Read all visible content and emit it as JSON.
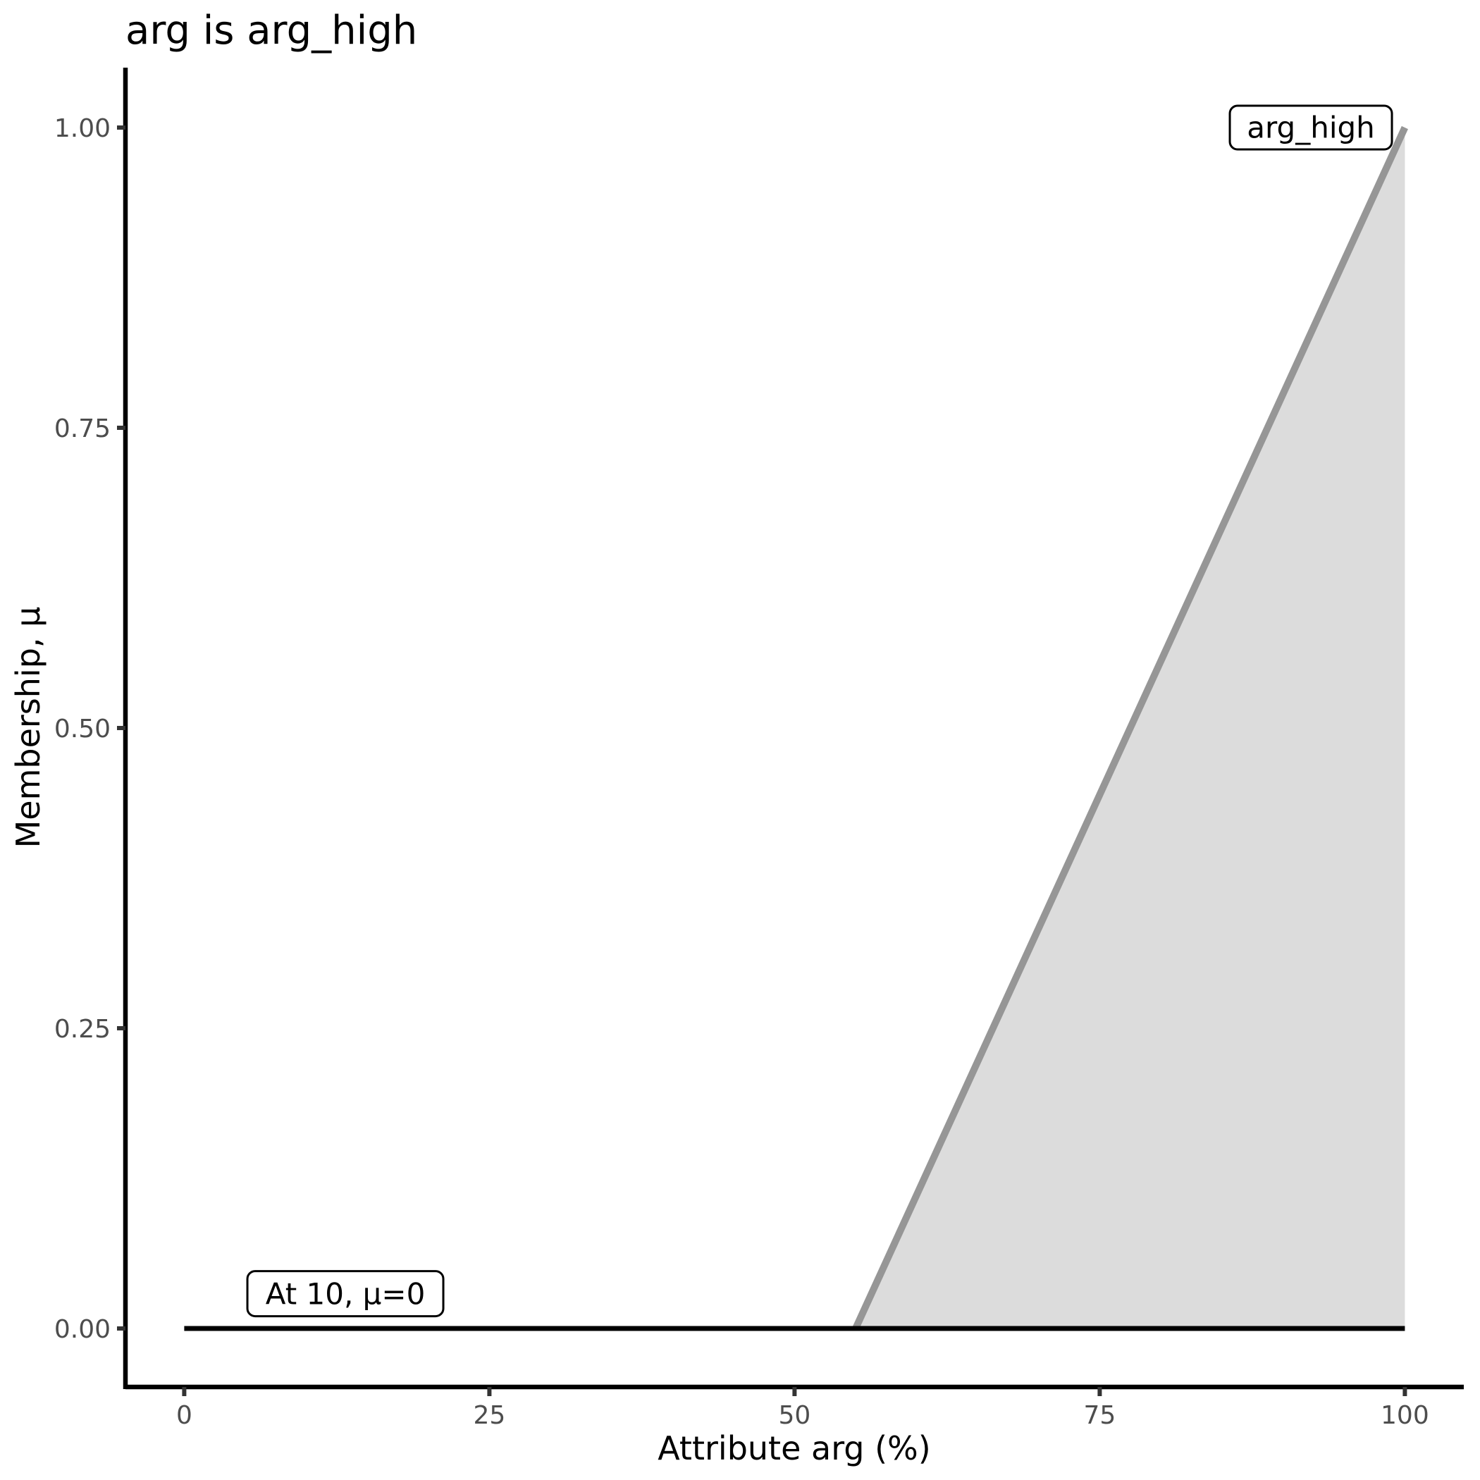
{
  "chart_data": {
    "type": "area",
    "title": "arg is arg_high",
    "xlabel": "Attribute arg (%)",
    "ylabel": "Membership, μ",
    "xlim": [
      0,
      100
    ],
    "ylim": [
      0,
      1
    ],
    "grid": false,
    "legend": "none",
    "x_tick_values": [
      0,
      25,
      50,
      75,
      100
    ],
    "x_tick_labels": [
      "0",
      "25",
      "50",
      "75",
      "100"
    ],
    "y_tick_values": [
      0,
      0.25,
      0.5,
      0.75,
      1
    ],
    "y_tick_labels": [
      "0.00",
      "0.25",
      "0.50",
      "0.75",
      "1.00"
    ],
    "series": [
      {
        "name": "arg_high",
        "role": "membership-function",
        "type": "area",
        "points": [
          [
            55,
            0
          ],
          [
            100,
            1
          ]
        ],
        "fill_to_x": 100,
        "line_color": "#969696",
        "fill_color": "#dcdcdc"
      },
      {
        "name": "membership-at-value",
        "role": "evaluation-result",
        "type": "line",
        "points": [
          [
            0,
            0
          ],
          [
            100,
            0
          ]
        ],
        "line_color": "#000000"
      }
    ],
    "annotations": [
      {
        "label": "arg_high",
        "x": 92.3,
        "y": 1.0
      },
      {
        "label": "At 10, μ=0",
        "x": 13.2,
        "y": 0.029
      }
    ]
  }
}
